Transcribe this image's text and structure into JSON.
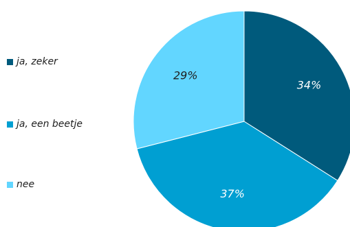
{
  "chart_data": {
    "type": "pie",
    "categories": [
      "ja, zeker",
      "ja, een beetje",
      "nee"
    ],
    "values": [
      34,
      37,
      29
    ],
    "value_labels": [
      "34%",
      "37%",
      "29%"
    ],
    "colors": [
      "#005a7c",
      "#009fd2",
      "#62d6ff"
    ],
    "legend": "left",
    "label_colors": [
      "#ffffff",
      "#ffffff",
      "#1f1f1f"
    ]
  }
}
